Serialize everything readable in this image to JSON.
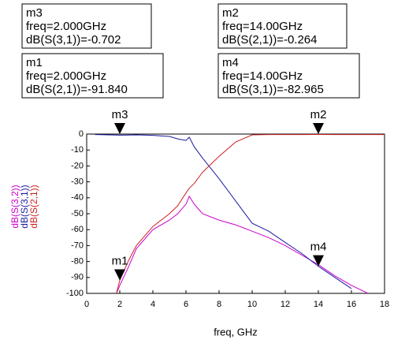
{
  "chart_data": {
    "type": "line",
    "xlabel": "freq, GHz",
    "x": [
      0.5,
      1.8,
      2,
      2.5,
      3,
      4,
      5,
      5.5,
      6,
      6.2,
      6.5,
      7,
      8,
      9,
      10,
      11,
      12,
      13,
      14,
      15,
      16,
      17,
      18
    ],
    "series": [
      {
        "name": "dB(S(3,2))",
        "color": "#cc00cc",
        "values": [
          null,
          -100,
          -95,
          -84,
          -72,
          -60,
          -54,
          -50,
          -44,
          -39,
          -44,
          -50,
          -54,
          -57,
          -61,
          -65,
          -70,
          -76,
          -82,
          -89,
          -95,
          -100,
          null
        ]
      },
      {
        "name": "dB(S(3,1))",
        "color": "#1a1aa0",
        "values": [
          -0.3,
          -0.6,
          -0.702,
          -0.6,
          -0.5,
          -0.8,
          -1.5,
          -3,
          -4,
          -2,
          -8,
          -15,
          -28,
          -42,
          -56,
          -61,
          -68,
          -75,
          -82.965,
          -90,
          -97,
          null,
          null
        ]
      },
      {
        "name": "dB(S(2,1))",
        "color": "#cc2222",
        "values": [
          null,
          -100,
          -91.84,
          -80,
          -70,
          -58,
          -50,
          -45,
          -37,
          -34,
          -31,
          -24,
          -14,
          -5,
          -0.5,
          -0.3,
          -0.3,
          -0.3,
          -0.264,
          -0.3,
          -0.3,
          -0.3,
          -0.3
        ]
      }
    ],
    "xlim": [
      0,
      18
    ],
    "xticks": [
      0,
      2,
      4,
      6,
      8,
      10,
      12,
      14,
      16,
      18
    ],
    "ylim": [
      -100,
      0
    ],
    "yticks": [
      0,
      -10,
      -20,
      -30,
      -40,
      -50,
      -60,
      -70,
      -80,
      -90,
      -100
    ],
    "markers": [
      {
        "name": "m3",
        "freq": "freq=2.000GHz",
        "readout": "dB(S(3,1))=-0.702"
      },
      {
        "name": "m1",
        "freq": "freq=2.000GHz",
        "readout": "dB(S(2,1))=-91.840"
      },
      {
        "name": "m2",
        "freq": "freq=14.00GHz",
        "readout": "dB(S(2,1))=-0.264"
      },
      {
        "name": "m4",
        "freq": "freq=14.00GHz",
        "readout": "dB(S(3,1))=-82.965"
      }
    ]
  }
}
